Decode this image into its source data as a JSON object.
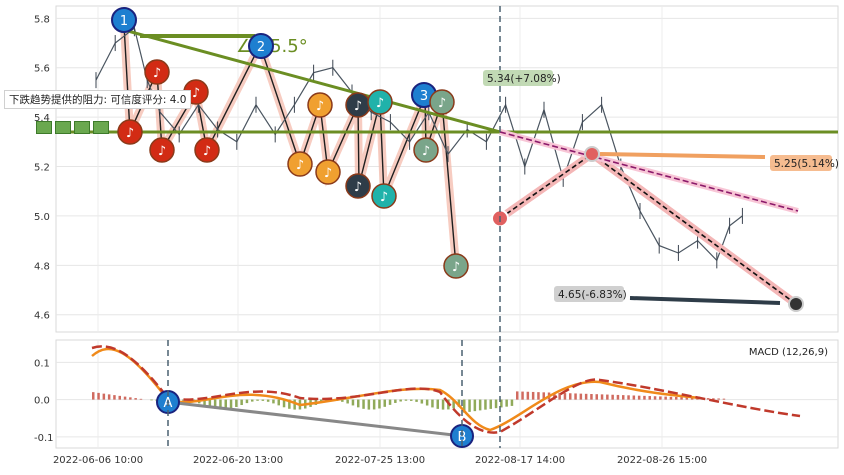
{
  "chart_data": [
    {
      "type": "line",
      "panel": "price",
      "ylim": [
        4.53,
        5.85
      ],
      "yticks": [
        "5.8",
        "5.6",
        "5.4",
        "5.2",
        "5.0",
        "4.8",
        "4.6"
      ],
      "ytick_values": [
        5.8,
        5.6,
        5.4,
        5.2,
        5.0,
        4.8,
        4.6
      ],
      "bar_index_range": [
        0,
        220
      ],
      "price_series": {
        "x": [
          0,
          6,
          12,
          16,
          20,
          26,
          32,
          38,
          44,
          50,
          56,
          62,
          68,
          74,
          80,
          86,
          92,
          98,
          104,
          110,
          116,
          122,
          128,
          134,
          140,
          146,
          152,
          158,
          164,
          170,
          176,
          182,
          188,
          194,
          198,
          202
        ],
        "y": [
          5.55,
          5.7,
          5.76,
          5.55,
          5.42,
          5.33,
          5.45,
          5.35,
          5.3,
          5.45,
          5.33,
          5.45,
          5.58,
          5.6,
          5.5,
          5.42,
          5.38,
          5.3,
          5.42,
          5.25,
          5.35,
          5.3,
          5.45,
          5.2,
          5.43,
          5.15,
          5.38,
          5.45,
          5.2,
          5.02,
          4.88,
          4.85,
          4.9,
          4.82,
          4.96,
          5.0
        ]
      },
      "annotations": {
        "angle_text": "∠-15.5°",
        "resistance_label": "下跌趋势提供的阻力: 可信度评分: 4.0",
        "target_up_label": "5.34(+7.08%)",
        "target_mid_label": "5.25(5.14%)",
        "target_down_label": "4.65(-6.83%)",
        "markers": [
          "1",
          "2",
          "3"
        ]
      },
      "current_price": 4.99,
      "horizontal_support": 5.34
    },
    {
      "type": "line",
      "panel": "macd",
      "legend": "MACD (12,26,9)",
      "ylim": [
        -0.13,
        0.16
      ],
      "yticks": [
        "0.1",
        "0.0",
        "-0.1"
      ],
      "ytick_values": [
        0.1,
        0.0,
        -0.1
      ],
      "categories": [
        "2022-06-06 10:00",
        "2022-06-20 13:00",
        "2022-07-25 13:00",
        "2022-08-17 14:00",
        "2022-08-26 15:00"
      ],
      "markers": [
        "A",
        "B"
      ]
    }
  ]
}
